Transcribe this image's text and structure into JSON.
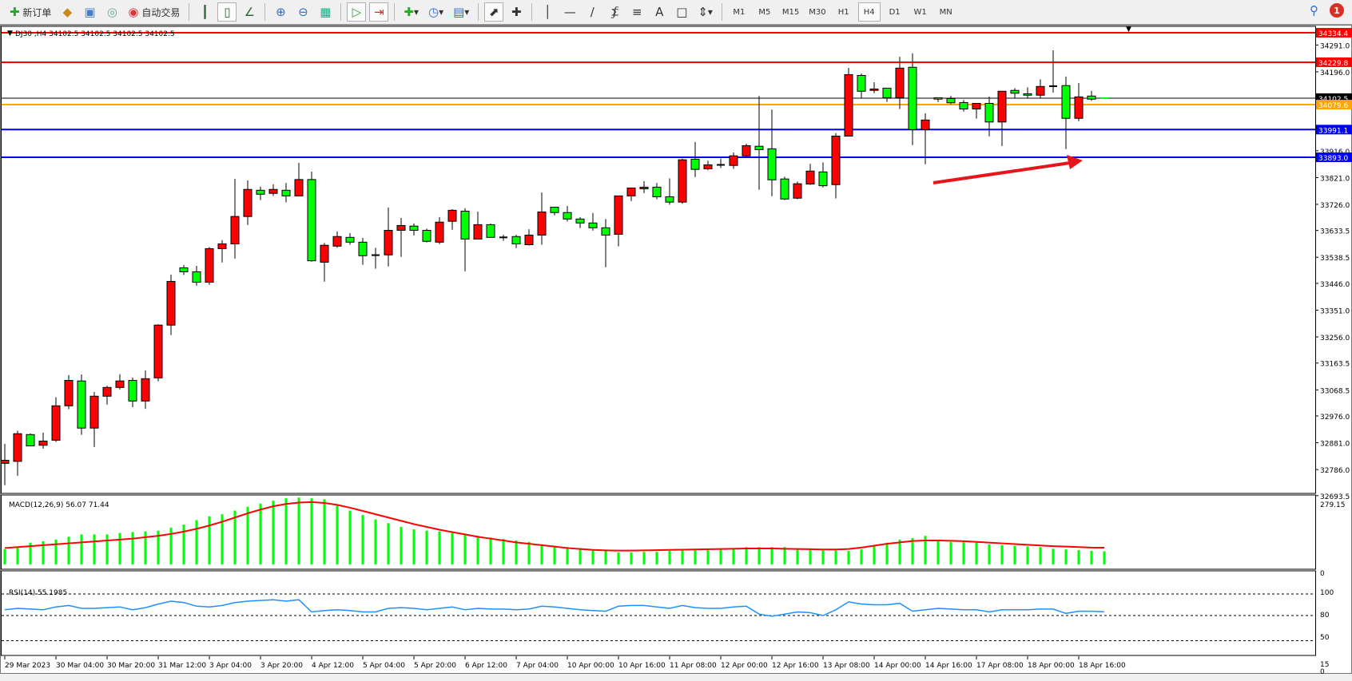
{
  "toolbar": {
    "new_order": "新订单",
    "auto_trading": "自动交易",
    "timeframes": [
      "M1",
      "M5",
      "M15",
      "M30",
      "H1",
      "H4",
      "D1",
      "W1",
      "MN"
    ],
    "active_timeframe": "H4",
    "notification_count": "1"
  },
  "chart": {
    "header": "DJ30 ,H4  34102.5 34102.5 34102.5 34102.5",
    "price_ticks": [
      "34291.0",
      "34196.0",
      "33916.0",
      "33821.0",
      "33726.0",
      "33633.5",
      "33538.5",
      "33446.0",
      "33351.0",
      "33256.0",
      "33163.5",
      "33068.5",
      "32976.0",
      "32881.0",
      "32786.0",
      "32693.5"
    ],
    "levels": [
      {
        "price": "34334.4",
        "color": "#ff0000"
      },
      {
        "price": "34229.8",
        "color": "#ff0000"
      },
      {
        "price": "34102.5",
        "color": "#000000"
      },
      {
        "price": "34079.6",
        "color": "#ffa500"
      },
      {
        "price": "33991.1",
        "color": "#0000ff"
      },
      {
        "price": "33893.0",
        "color": "#0000ff"
      }
    ],
    "time_labels": [
      "29 Mar 2023",
      "30 Mar 04:00",
      "30 Mar 20:00",
      "31 Mar 12:00",
      "3 Apr 04:00",
      "3 Apr 20:00",
      "4 Apr 12:00",
      "5 Apr 04:00",
      "5 Apr 20:00",
      "6 Apr 12:00",
      "7 Apr 04:00",
      "10 Apr 00:00",
      "10 Apr 16:00",
      "11 Apr 08:00",
      "12 Apr 00:00",
      "12 Apr 16:00",
      "13 Apr 08:00",
      "14 Apr 00:00",
      "14 Apr 16:00",
      "17 Apr 08:00",
      "18 Apr 00:00",
      "18 Apr 16:00"
    ],
    "up_color": "#ff0000",
    "down_color": "#00ff00"
  },
  "macd": {
    "label": "MACD(12,26,9) 56.07 71.44",
    "max_label": "279.15",
    "zero_label": "0"
  },
  "rsi": {
    "label": "RSI(14) 55.1985",
    "levels": [
      "100",
      "80",
      "50",
      "15",
      "0"
    ]
  },
  "chart_data": {
    "type": "candlestick",
    "symbol": "DJ30",
    "timeframe": "H4",
    "ylim": [
      32680,
      34345
    ],
    "ohlc": [
      [
        32808,
        32877,
        32731,
        32819
      ],
      [
        32815,
        32924,
        32764,
        32913
      ],
      [
        32910,
        32914,
        32868,
        32870
      ],
      [
        32872,
        32917,
        32860,
        32887
      ],
      [
        32890,
        33042,
        32884,
        33012
      ],
      [
        33012,
        33121,
        33000,
        33102
      ],
      [
        33100,
        33123,
        32909,
        32933
      ],
      [
        32933,
        33061,
        32866,
        33046
      ],
      [
        33046,
        33083,
        33016,
        33077
      ],
      [
        33077,
        33124,
        33070,
        33100
      ],
      [
        33102,
        33112,
        33007,
        33029
      ],
      [
        33029,
        33137,
        33001,
        33108
      ],
      [
        33111,
        33301,
        33099,
        33298
      ],
      [
        33298,
        33477,
        33263,
        33453
      ],
      [
        33501,
        33511,
        33476,
        33487
      ],
      [
        33487,
        33508,
        33438,
        33450
      ],
      [
        33450,
        33575,
        33441,
        33569
      ],
      [
        33569,
        33599,
        33520,
        33586
      ],
      [
        33586,
        33816,
        33534,
        33683
      ],
      [
        33683,
        33811,
        33653,
        33779
      ],
      [
        33776,
        33789,
        33741,
        33762
      ],
      [
        33765,
        33797,
        33756,
        33779
      ],
      [
        33776,
        33802,
        33733,
        33756
      ],
      [
        33756,
        33873,
        33756,
        33814
      ],
      [
        33814,
        33842,
        33523,
        33526
      ],
      [
        33521,
        33589,
        33452,
        33581
      ],
      [
        33578,
        33630,
        33572,
        33612
      ],
      [
        33609,
        33624,
        33583,
        33592
      ],
      [
        33592,
        33607,
        33512,
        33544
      ],
      [
        33546,
        33572,
        33498,
        33546
      ],
      [
        33547,
        33715,
        33506,
        33634
      ],
      [
        33634,
        33678,
        33540,
        33651
      ],
      [
        33649,
        33658,
        33616,
        33634
      ],
      [
        33634,
        33640,
        33591,
        33595
      ],
      [
        33592,
        33681,
        33585,
        33663
      ],
      [
        33666,
        33709,
        33636,
        33705
      ],
      [
        33702,
        33712,
        33489,
        33603
      ],
      [
        33603,
        33700,
        33603,
        33654
      ],
      [
        33654,
        33658,
        33609,
        33609
      ],
      [
        33609,
        33618,
        33597,
        33609
      ],
      [
        33612,
        33618,
        33571,
        33586
      ],
      [
        33583,
        33638,
        33580,
        33617
      ],
      [
        33617,
        33768,
        33583,
        33699
      ],
      [
        33716,
        33716,
        33687,
        33697
      ],
      [
        33697,
        33720,
        33665,
        33674
      ],
      [
        33674,
        33681,
        33642,
        33660
      ],
      [
        33660,
        33695,
        33633,
        33643
      ],
      [
        33643,
        33674,
        33503,
        33617
      ],
      [
        33620,
        33756,
        33577,
        33756
      ],
      [
        33756,
        33784,
        33738,
        33784
      ],
      [
        33781,
        33808,
        33766,
        33787
      ],
      [
        33787,
        33802,
        33744,
        33753
      ],
      [
        33753,
        33818,
        33725,
        33734
      ],
      [
        33734,
        33888,
        33728,
        33884
      ],
      [
        33886,
        33947,
        33823,
        33850
      ],
      [
        33852,
        33881,
        33847,
        33866
      ],
      [
        33866,
        33888,
        33855,
        33866
      ],
      [
        33864,
        33910,
        33852,
        33898
      ],
      [
        33898,
        33941,
        33895,
        33934
      ],
      [
        33932,
        34110,
        33778,
        33920
      ],
      [
        33923,
        34062,
        33755,
        33813
      ],
      [
        33816,
        33824,
        33741,
        33745
      ],
      [
        33748,
        33807,
        33744,
        33799
      ],
      [
        33798,
        33870,
        33795,
        33844
      ],
      [
        33841,
        33875,
        33786,
        33792
      ],
      [
        33796,
        33978,
        33747,
        33968
      ],
      [
        33968,
        34210,
        33968,
        34186
      ],
      [
        34183,
        34190,
        34103,
        34127
      ],
      [
        34130,
        34159,
        34120,
        34135
      ],
      [
        34138,
        34138,
        34089,
        34104
      ],
      [
        34104,
        34249,
        34064,
        34209
      ],
      [
        34212,
        34261,
        33936,
        33991
      ],
      [
        33991,
        34049,
        33868,
        34025
      ],
      [
        34104,
        34104,
        34089,
        34099
      ],
      [
        34101,
        34110,
        34081,
        34086
      ],
      [
        34087,
        34096,
        34055,
        34064
      ],
      [
        34064,
        34084,
        34030,
        34084
      ],
      [
        34084,
        34108,
        33967,
        34018
      ],
      [
        34018,
        34127,
        33933,
        34127
      ],
      [
        34130,
        34138,
        34103,
        34120
      ],
      [
        34118,
        34141,
        34103,
        34113
      ],
      [
        34113,
        34169,
        34103,
        34144
      ],
      [
        34145,
        34272,
        34122,
        34145
      ],
      [
        34147,
        34179,
        33922,
        34031
      ],
      [
        34031,
        34156,
        34021,
        34107
      ],
      [
        34110,
        34128,
        34093,
        34099
      ],
      [
        34102.5,
        34102.5,
        34102.5,
        34102.5
      ]
    ],
    "macd_hist": [
      65,
      72,
      93,
      99,
      106,
      118,
      128,
      128,
      128,
      134,
      138,
      141,
      144,
      157,
      170,
      189,
      205,
      214,
      230,
      246,
      259,
      272,
      282,
      285,
      282,
      278,
      256,
      230,
      211,
      192,
      176,
      160,
      150,
      144,
      141,
      134,
      128,
      122,
      115,
      109,
      102,
      96,
      86,
      80,
      74,
      70,
      64,
      58,
      51,
      51,
      54,
      54,
      58,
      61,
      64,
      64,
      67,
      70,
      74,
      74,
      74,
      74,
      67,
      64,
      61,
      61,
      58,
      64,
      77,
      93,
      106,
      112,
      122,
      102,
      96,
      96,
      93,
      86,
      83,
      80,
      77,
      74,
      67,
      64,
      61,
      58,
      56.07
    ],
    "macd_signal": [
      70,
      74,
      78,
      82,
      86,
      90,
      94,
      98,
      102,
      106,
      110,
      116,
      122,
      130,
      140,
      152,
      166,
      182,
      200,
      218,
      234,
      248,
      258,
      264,
      266,
      262,
      254,
      242,
      228,
      214,
      200,
      186,
      172,
      160,
      148,
      138,
      128,
      118,
      110,
      102,
      94,
      88,
      82,
      76,
      70,
      66,
      62,
      60,
      59,
      59,
      60,
      61,
      62,
      63,
      64,
      65,
      66,
      67,
      68,
      68,
      68,
      67,
      66,
      65,
      64,
      64,
      66,
      72,
      80,
      88,
      94,
      100,
      102,
      102,
      101,
      99,
      96,
      93,
      90,
      87,
      84,
      81,
      78,
      76,
      74,
      72,
      71.44
    ],
    "rsi": [
      58,
      60,
      59,
      58,
      62,
      64,
      60,
      60,
      61,
      62,
      58,
      61,
      66,
      70,
      68,
      63,
      62,
      64,
      68,
      70,
      71,
      72,
      70,
      72,
      55,
      57,
      58,
      57,
      55,
      55,
      60,
      61,
      60,
      58,
      60,
      62,
      58,
      60,
      59,
      59,
      58,
      59,
      63,
      62,
      60,
      58,
      57,
      56,
      63,
      64,
      64,
      62,
      60,
      64,
      61,
      60,
      60,
      62,
      63,
      52,
      49,
      52,
      55,
      54,
      50,
      58,
      69,
      66,
      65,
      65,
      67,
      56,
      58,
      60,
      59,
      58,
      58,
      55,
      58,
      58,
      58,
      59,
      59,
      53,
      56,
      56,
      55.1985
    ],
    "macd_ylim": [
      0,
      279.15
    ],
    "rsi_ylim": [
      0,
      100
    ]
  }
}
